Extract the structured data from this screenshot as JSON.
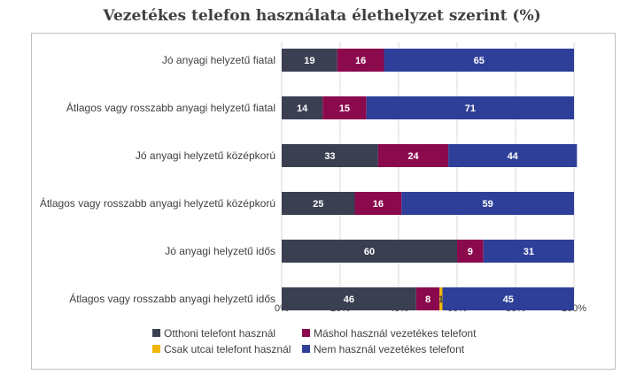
{
  "chart_data": {
    "type": "bar",
    "orientation": "horizontal",
    "stacked": "percent",
    "title": "Vezetékes telefon használata élethelyzet szerint (%)",
    "categories": [
      "Jó anyagi helyzetű fiatal",
      "Átlagos vagy rosszabb anyagi helyzetű fiatal",
      "Jó anyagi helyzetű középkorú",
      "Átlagos vagy rosszabb anyagi helyzetű középkorú",
      "Jó anyagi helyzetű idős",
      "Átlagos vagy rosszabb anyagi helyzetű idős"
    ],
    "series": [
      {
        "name": "Otthoni telefont használ",
        "color": "#3b3f52",
        "values": [
          19,
          14,
          33,
          25,
          60,
          46
        ],
        "labels": [
          "19",
          "14",
          "33",
          "25",
          "60",
          "46"
        ]
      },
      {
        "name": "Máshol használ vezetékes telefont",
        "color": "#8b0a4e",
        "values": [
          16,
          15,
          24,
          16,
          9,
          8
        ],
        "labels": [
          "16",
          "15",
          "24",
          "16",
          "9",
          "8"
        ]
      },
      {
        "name": "Csak utcai telefont használ",
        "color": "#f2b705",
        "values": [
          0,
          0,
          0,
          0,
          0,
          1
        ],
        "labels": [
          "",
          "",
          "",
          "",
          "",
          "1"
        ]
      },
      {
        "name": "Nem használ vezetékes telefont",
        "color": "#2e3f99",
        "values": [
          65,
          71,
          44,
          59,
          31,
          45
        ],
        "labels": [
          "65",
          "71",
          "44",
          "59",
          "31",
          "45"
        ]
      }
    ],
    "xlim": [
      0,
      100
    ],
    "x_ticks": [
      "0%",
      "20%",
      "40%",
      "60%",
      "80%",
      "100%"
    ],
    "grid": true,
    "legend_position": "bottom"
  }
}
